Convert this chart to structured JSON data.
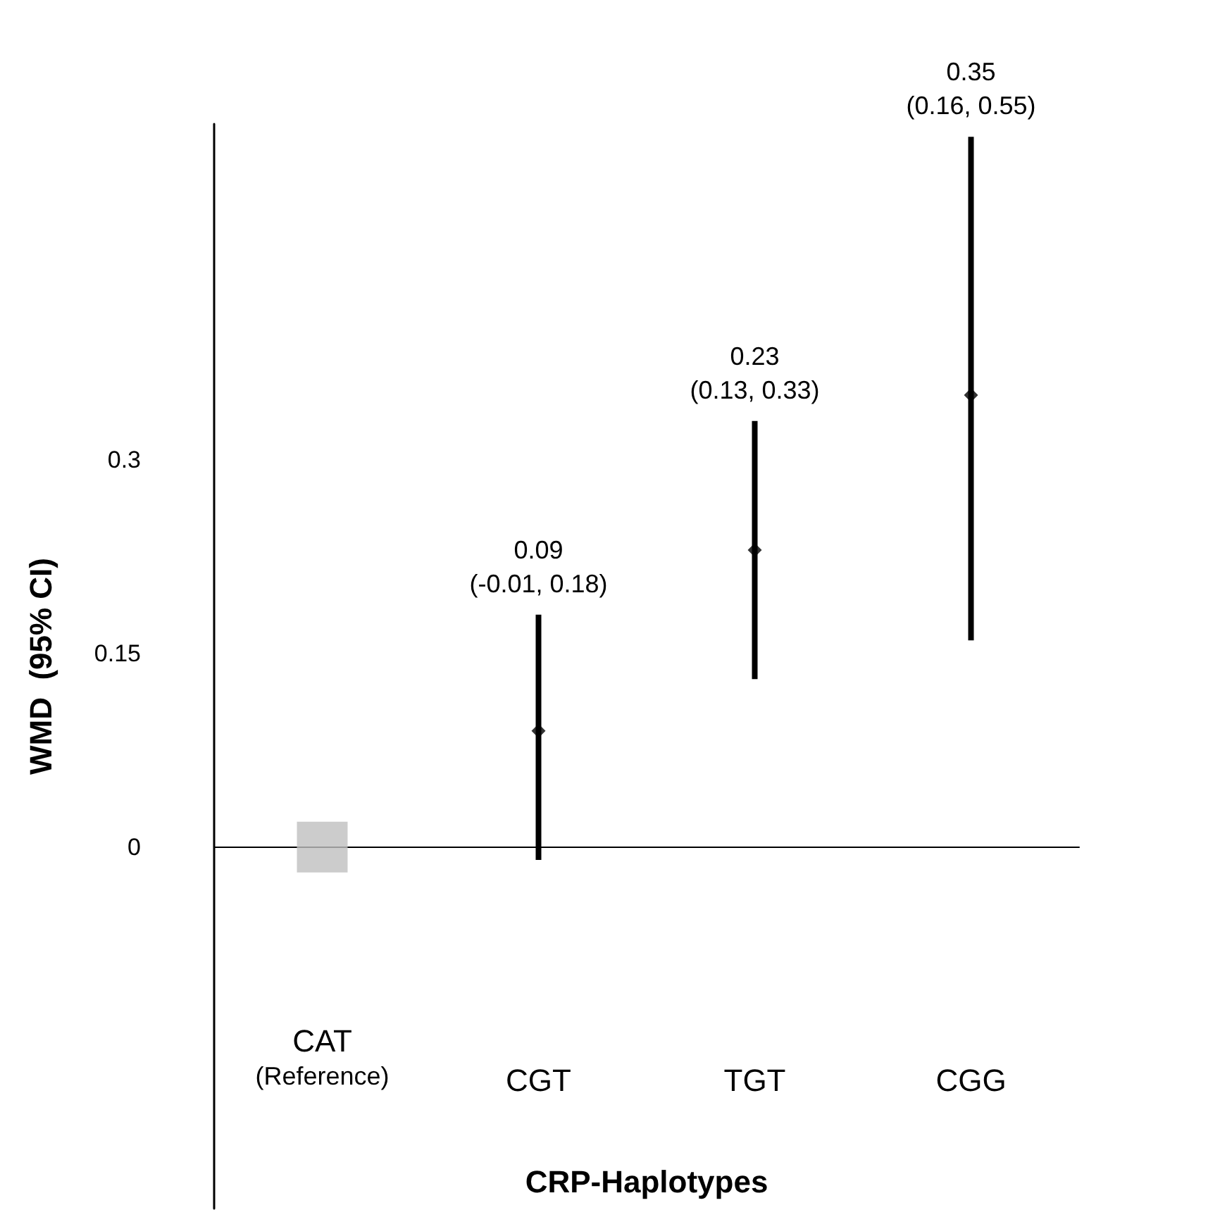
{
  "chart_data": {
    "type": "scatter",
    "categories": [
      "CAT\n(Reference)",
      "CGT",
      "TGT",
      "CGG"
    ],
    "series": [
      {
        "color": "#bfbfbf",
        "marker": "square",
        "values": [
          0,
          null,
          null,
          null
        ]
      },
      {
        "color": "#000000",
        "marker": "diamond",
        "values": [
          null,
          0.09,
          0.23,
          0.35
        ],
        "errors": [
          null,
          [
            -0.01,
            0.18
          ],
          [
            0.13,
            0.33
          ],
          [
            0.16,
            0.55
          ]
        ]
      }
    ],
    "annotations": [
      {
        "text": "0.09\n(-0.01, 0.18)",
        "x": "CGT",
        "y": 0.18
      },
      {
        "text": "0.23\n(0.13, 0.33)",
        "x": "TGT",
        "y": 0.33
      },
      {
        "text": "0.35\n(0.16, 0.55)",
        "x": "CGG",
        "y": 0.55
      }
    ],
    "xlabel": "CRP-Haplotypes",
    "ylabel": "WMD  (95% CI)",
    "ylim": [
      -0.28,
      0.56
    ],
    "yticks": [
      0,
      0.15,
      0.3
    ]
  }
}
